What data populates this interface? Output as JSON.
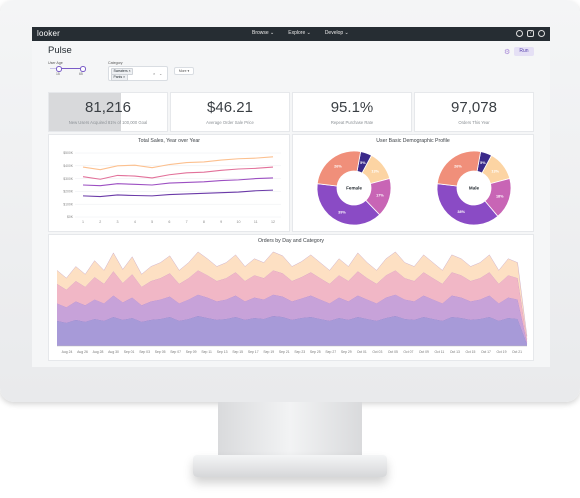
{
  "app": {
    "logo": "looker"
  },
  "nav": [
    {
      "label": "Browse ⌄"
    },
    {
      "label": "Explore ⌄"
    },
    {
      "label": "Develop ⌄"
    }
  ],
  "header": {
    "title": "Pulse",
    "run_label": "Run"
  },
  "filters": {
    "user_age_label": "User Age",
    "age_min": "15",
    "age_max": "65",
    "category_label": "Category",
    "chips": [
      "Sweaters ×",
      "Pants ×"
    ],
    "more_label": "More ▾"
  },
  "kpis": [
    {
      "value": "81,216",
      "label": "New Users Acquired 81% of 100,000 Goal",
      "progress": 0.81
    },
    {
      "value": "$46.21",
      "label": "Average Order Sale Price"
    },
    {
      "value": "95.1%",
      "label": "Repeat Purchase Rate"
    },
    {
      "value": "97,078",
      "label": "Orders This Year"
    }
  ],
  "colors": {
    "purple": "#7e3fb5",
    "violet": "#9c59c9",
    "pink": "#d36aa5",
    "salmon": "#f08f7a",
    "peach": "#fcd4a3",
    "navy": "#3b2a8a"
  },
  "chart_data": [
    {
      "type": "line",
      "title": "Total Sales, Year over Year",
      "x": [
        1,
        2,
        3,
        4,
        5,
        6,
        7,
        8,
        9,
        10,
        11,
        12
      ],
      "y_ticks": [
        "$500K",
        "$400K",
        "$300K",
        "$200K",
        "$100K",
        "$0K"
      ],
      "ylim": [
        0,
        500
      ],
      "series": [
        {
          "color": "#fcc08f",
          "values": [
            390,
            370,
            400,
            405,
            385,
            410,
            425,
            430,
            445,
            455,
            460,
            470
          ]
        },
        {
          "color": "#e2719a",
          "values": [
            315,
            295,
            325,
            320,
            305,
            330,
            345,
            350,
            365,
            375,
            380,
            390
          ]
        },
        {
          "color": "#9c4fc2",
          "values": [
            250,
            245,
            260,
            255,
            250,
            265,
            270,
            275,
            285,
            290,
            300,
            305
          ]
        },
        {
          "color": "#6b3aa8",
          "values": [
            165,
            160,
            172,
            168,
            165,
            175,
            180,
            185,
            190,
            195,
            205,
            210
          ]
        }
      ]
    },
    {
      "type": "pie",
      "title": "User Basic Demographic Profile",
      "charts": [
        {
          "center_label": "Female",
          "slices": [
            {
              "value": 5,
              "label": "5%",
              "color": "#3b2a8a"
            },
            {
              "value": 13,
              "label": "13%",
              "color": "#fcd4a3"
            },
            {
              "value": 17,
              "label": "17%",
              "color": "#c865b5"
            },
            {
              "value": 39,
              "label": "39%",
              "color": "#8a4bc5"
            },
            {
              "value": 26,
              "label": "26%",
              "color": "#f08f7a"
            }
          ]
        },
        {
          "center_label": "Male",
          "slices": [
            {
              "value": 5,
              "label": "5%",
              "color": "#3b2a8a"
            },
            {
              "value": 13,
              "label": "13%",
              "color": "#fcd4a3"
            },
            {
              "value": 18,
              "label": "18%",
              "color": "#c865b5"
            },
            {
              "value": 38,
              "label": "38%",
              "color": "#8a4bc5"
            },
            {
              "value": 26,
              "label": "26%",
              "color": "#f08f7a"
            }
          ]
        }
      ]
    },
    {
      "type": "area",
      "title": "Orders by Day and Category",
      "x_labels": [
        "Aug 24",
        "Aug 26",
        "Aug 28",
        "Aug 30",
        "Sep 01",
        "Sep 03",
        "Sep 05",
        "Sep 07",
        "Sep 09",
        "Sep 11",
        "Sep 13",
        "Sep 15",
        "Sep 17",
        "Sep 19",
        "Sep 21",
        "Sep 23",
        "Sep 25",
        "Sep 27",
        "Sep 29",
        "Oct 01",
        "Oct 03",
        "Oct 05",
        "Oct 07",
        "Oct 09",
        "Oct 11",
        "Oct 13",
        "Oct 15",
        "Oct 17",
        "Oct 19",
        "Oct 21"
      ],
      "series": [
        {
          "color": "#a79ad8",
          "values": [
            26,
            24,
            27,
            25,
            28,
            26,
            30,
            27,
            29,
            25,
            27,
            28,
            30,
            26,
            28,
            31,
            29,
            27,
            28,
            30,
            27,
            29,
            28,
            31,
            30,
            27,
            29,
            30,
            28,
            26,
            29,
            27,
            30,
            28,
            26,
            29,
            31,
            28,
            27,
            30,
            28,
            26,
            30,
            29,
            27,
            28,
            30,
            26,
            29,
            28,
            2
          ]
        },
        {
          "color": "#c7a2d9",
          "values": [
            18,
            16,
            19,
            17,
            20,
            18,
            22,
            18,
            21,
            17,
            19,
            20,
            21,
            18,
            20,
            22,
            21,
            19,
            20,
            22,
            19,
            21,
            20,
            22,
            21,
            19,
            20,
            22,
            20,
            18,
            21,
            19,
            22,
            20,
            18,
            21,
            22,
            20,
            19,
            22,
            20,
            18,
            22,
            21,
            19,
            20,
            22,
            18,
            21,
            20,
            2
          ]
        },
        {
          "color": "#f1b7c6",
          "values": [
            20,
            18,
            21,
            19,
            23,
            20,
            25,
            20,
            24,
            19,
            21,
            22,
            24,
            20,
            22,
            25,
            23,
            21,
            22,
            24,
            21,
            23,
            22,
            25,
            24,
            21,
            22,
            24,
            22,
            20,
            23,
            21,
            25,
            22,
            20,
            23,
            25,
            22,
            21,
            24,
            22,
            20,
            24,
            23,
            21,
            22,
            24,
            20,
            23,
            22,
            3
          ]
        },
        {
          "color": "#fde0c3",
          "values": [
            14,
            12,
            15,
            13,
            17,
            14,
            19,
            14,
            18,
            13,
            15,
            16,
            18,
            14,
            16,
            19,
            17,
            15,
            16,
            18,
            15,
            17,
            16,
            19,
            18,
            15,
            16,
            18,
            16,
            14,
            17,
            15,
            19,
            16,
            14,
            17,
            19,
            16,
            15,
            18,
            16,
            14,
            18,
            17,
            15,
            16,
            18,
            14,
            17,
            16,
            3
          ]
        }
      ],
      "ymax": 100
    }
  ]
}
